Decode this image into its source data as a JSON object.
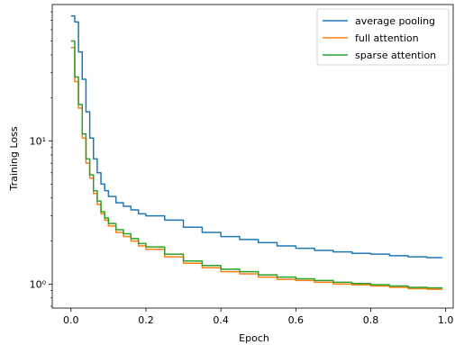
{
  "chart_data": {
    "type": "line",
    "xlabel": "Epoch",
    "ylabel": "Training Loss",
    "xlim": [
      -0.05,
      1.02
    ],
    "ylim": [
      0.68,
      90
    ],
    "yscale": "log",
    "xticks": [
      0.0,
      0.2,
      0.4,
      0.6,
      0.8,
      1.0
    ],
    "xtick_labels": [
      "0.0",
      "0.2",
      "0.4",
      "0.6",
      "0.8",
      "1.0"
    ],
    "yticks": [
      1,
      10
    ],
    "ytick_labels": [
      "10⁰",
      "10¹"
    ],
    "grid": false,
    "legend_position": "top-right",
    "series": [
      {
        "name": "average pooling",
        "color": "#1f77b4",
        "x": [
          0.0,
          0.01,
          0.02,
          0.03,
          0.04,
          0.05,
          0.06,
          0.07,
          0.08,
          0.09,
          0.1,
          0.12,
          0.14,
          0.16,
          0.18,
          0.2,
          0.25,
          0.3,
          0.35,
          0.4,
          0.45,
          0.5,
          0.55,
          0.6,
          0.65,
          0.7,
          0.75,
          0.8,
          0.85,
          0.9,
          0.95,
          0.99
        ],
        "y": [
          75,
          68,
          42,
          27,
          16,
          10.5,
          7.5,
          6.0,
          5.0,
          4.5,
          4.1,
          3.7,
          3.5,
          3.3,
          3.1,
          3.0,
          2.8,
          2.5,
          2.3,
          2.15,
          2.05,
          1.95,
          1.85,
          1.78,
          1.72,
          1.68,
          1.64,
          1.62,
          1.58,
          1.55,
          1.53,
          1.52
        ]
      },
      {
        "name": "full attention",
        "color": "#ff7f0e",
        "x": [
          0.0,
          0.01,
          0.02,
          0.03,
          0.04,
          0.05,
          0.06,
          0.07,
          0.08,
          0.09,
          0.1,
          0.12,
          0.14,
          0.16,
          0.18,
          0.2,
          0.25,
          0.3,
          0.35,
          0.4,
          0.45,
          0.5,
          0.55,
          0.6,
          0.65,
          0.7,
          0.75,
          0.8,
          0.85,
          0.9,
          0.95,
          0.99
        ],
        "y": [
          45,
          26,
          17,
          10.5,
          7.0,
          5.5,
          4.3,
          3.6,
          3.1,
          2.8,
          2.55,
          2.3,
          2.15,
          2.0,
          1.85,
          1.75,
          1.55,
          1.4,
          1.3,
          1.22,
          1.18,
          1.12,
          1.08,
          1.06,
          1.03,
          1.0,
          0.99,
          0.97,
          0.95,
          0.93,
          0.92,
          0.91
        ]
      },
      {
        "name": "sparse attention",
        "color": "#2ca02c",
        "x": [
          0.0,
          0.01,
          0.02,
          0.03,
          0.04,
          0.05,
          0.06,
          0.07,
          0.08,
          0.09,
          0.1,
          0.12,
          0.14,
          0.16,
          0.18,
          0.2,
          0.25,
          0.3,
          0.35,
          0.4,
          0.45,
          0.5,
          0.55,
          0.6,
          0.65,
          0.7,
          0.75,
          0.8,
          0.85,
          0.9,
          0.95,
          0.99
        ],
        "y": [
          50,
          28,
          18,
          11.2,
          7.5,
          5.8,
          4.5,
          3.8,
          3.2,
          2.9,
          2.65,
          2.4,
          2.25,
          2.08,
          1.92,
          1.82,
          1.62,
          1.45,
          1.35,
          1.27,
          1.22,
          1.16,
          1.12,
          1.09,
          1.06,
          1.03,
          1.01,
          0.99,
          0.97,
          0.95,
          0.94,
          0.93
        ]
      }
    ]
  }
}
